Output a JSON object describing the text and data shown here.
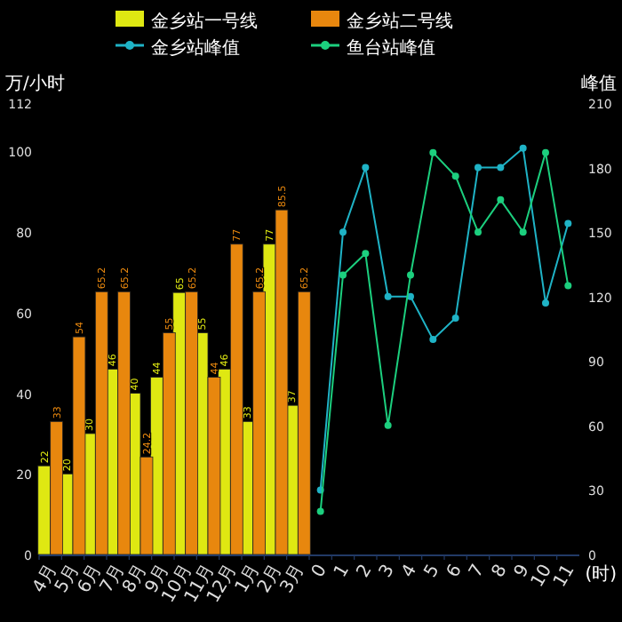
{
  "chart_data": {
    "type": "bar",
    "legend": "top",
    "marker": "circle",
    "ylabel": "万/小时",
    "y2label": "峰值",
    "xlabel": "(时)",
    "categories": [
      "4月",
      "5月",
      "6月",
      "7月",
      "8月",
      "9月",
      "10月",
      "11月",
      "12月",
      "1月",
      "2月",
      "3月",
      "0",
      "1",
      "2",
      "3",
      "4",
      "5",
      "6",
      "7",
      "8",
      "9",
      "10",
      "11"
    ],
    "ylim": [
      0,
      112
    ],
    "yticks": [
      0,
      20,
      40,
      60,
      80,
      100,
      112
    ],
    "y2lim": [
      0,
      210
    ],
    "y2ticks": [
      0,
      30,
      60,
      90,
      120,
      150,
      180,
      210
    ],
    "series": [
      {
        "name": "金乡站一号线",
        "color": "#dfe812",
        "values": [
          22,
          20,
          30,
          46,
          40,
          44,
          65,
          55,
          46,
          33,
          77,
          37,
          null,
          null,
          null,
          null,
          null,
          null,
          null,
          null,
          null,
          null,
          null,
          null
        ],
        "value_labels": [
          "22",
          "20",
          "30",
          "46",
          "40",
          "44",
          "65",
          "55",
          "46",
          "33",
          "77",
          "37",
          null,
          null,
          null,
          null,
          null,
          null,
          null,
          null,
          null,
          null,
          null,
          null
        ]
      },
      {
        "name": "金乡站二号线",
        "color": "#e8870e",
        "values": [
          33,
          54,
          65.2,
          65.2,
          24.2,
          55,
          65.2,
          44,
          77,
          65.2,
          85.5,
          65.2,
          null,
          null,
          null,
          null,
          null,
          null,
          null,
          null,
          null,
          null,
          null,
          null
        ],
        "value_labels": [
          "33",
          "54",
          "65.2",
          "65.2",
          "24.2",
          "55",
          "65.2",
          "44",
          "77",
          "65.2",
          "85.5",
          "65.2",
          null,
          null,
          null,
          null,
          null,
          null,
          null,
          null,
          null,
          null,
          null,
          null
        ]
      },
      {
        "name": "金乡站峰值",
        "type": "line",
        "axis": "y2",
        "color": "#1fb3c6",
        "values": [
          null,
          null,
          null,
          null,
          null,
          null,
          null,
          null,
          null,
          null,
          null,
          null,
          30,
          150,
          180,
          120,
          120,
          100,
          110,
          180,
          180,
          189,
          117,
          154
        ]
      },
      {
        "name": "鱼台站峰值",
        "type": "line",
        "axis": "y2",
        "color": "#1ccf7e",
        "values": [
          null,
          null,
          null,
          null,
          null,
          null,
          null,
          null,
          null,
          null,
          null,
          null,
          20,
          130,
          140,
          60,
          130,
          187,
          176,
          150,
          165,
          150,
          187,
          125
        ]
      }
    ]
  }
}
